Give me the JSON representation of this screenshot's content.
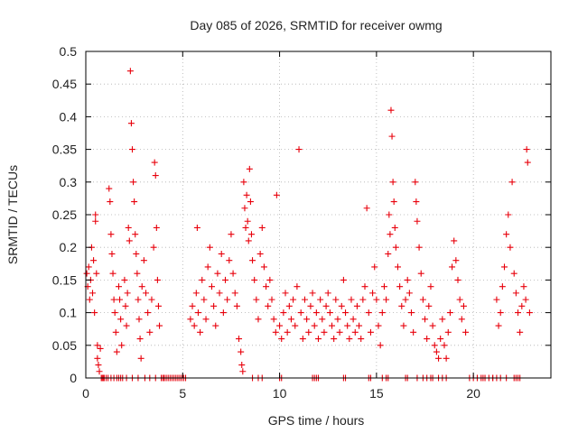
{
  "chart_data": {
    "type": "scatter",
    "title": "Day 085 of 2026, SRMTID for receiver owmg",
    "xlabel": "GPS time / hours",
    "ylabel": "SRMTID / TECUs",
    "xlim": [
      0,
      24
    ],
    "ylim": [
      0,
      0.5
    ],
    "xticks": [
      0,
      5,
      10,
      15,
      20
    ],
    "xtick_labels": [
      "0",
      "5",
      "10",
      "15",
      "20"
    ],
    "yticks": [
      0,
      0.05,
      0.1,
      0.15,
      0.2,
      0.25,
      0.3,
      0.35,
      0.4,
      0.45,
      0.5
    ],
    "ytick_labels": [
      "0",
      "0.05",
      "0.1",
      "0.15",
      "0.2",
      "0.25",
      "0.3",
      "0.35",
      "0.4",
      "0.45",
      "0.5"
    ],
    "grid": true,
    "marker": "+",
    "marker_color": "#e8000b",
    "series": [
      {
        "name": "SRMTID",
        "points": [
          [
            0.05,
            0.16
          ],
          [
            0.1,
            0.14
          ],
          [
            0.15,
            0.17
          ],
          [
            0.2,
            0.12
          ],
          [
            0.25,
            0.15
          ],
          [
            0.3,
            0.2
          ],
          [
            0.35,
            0.13
          ],
          [
            0.4,
            0.18
          ],
          [
            0.45,
            0.1
          ],
          [
            0.5,
            0.25
          ],
          [
            0.5,
            0.24
          ],
          [
            0.55,
            0.16
          ],
          [
            0.6,
            0.05
          ],
          [
            0.6,
            0.03
          ],
          [
            0.65,
            0.02
          ],
          [
            0.7,
            0.01
          ],
          [
            0.75,
            0.045
          ],
          [
            0.8,
            0.0
          ],
          [
            0.9,
            0.0
          ],
          [
            1.2,
            0.29
          ],
          [
            1.25,
            0.27
          ],
          [
            1.3,
            0.22
          ],
          [
            1.35,
            0.19
          ],
          [
            1.4,
            0.16
          ],
          [
            1.45,
            0.12
          ],
          [
            1.5,
            0.1
          ],
          [
            1.55,
            0.07
          ],
          [
            1.6,
            0.04
          ],
          [
            1.7,
            0.14
          ],
          [
            1.75,
            0.12
          ],
          [
            1.8,
            0.09
          ],
          [
            1.85,
            0.05
          ],
          [
            1.9,
            0.0
          ],
          [
            2.0,
            0.15
          ],
          [
            2.05,
            0.11
          ],
          [
            2.1,
            0.08
          ],
          [
            2.15,
            0.13
          ],
          [
            2.2,
            0.23
          ],
          [
            2.25,
            0.21
          ],
          [
            2.3,
            0.47
          ],
          [
            2.35,
            0.39
          ],
          [
            2.4,
            0.35
          ],
          [
            2.45,
            0.3
          ],
          [
            2.5,
            0.27
          ],
          [
            2.55,
            0.22
          ],
          [
            2.6,
            0.19
          ],
          [
            2.65,
            0.16
          ],
          [
            2.7,
            0.12
          ],
          [
            2.75,
            0.09
          ],
          [
            2.8,
            0.06
          ],
          [
            2.85,
            0.03
          ],
          [
            2.9,
            0.14
          ],
          [
            3.0,
            0.18
          ],
          [
            3.1,
            0.13
          ],
          [
            3.2,
            0.1
          ],
          [
            3.3,
            0.07
          ],
          [
            3.4,
            0.12
          ],
          [
            3.5,
            0.2
          ],
          [
            3.55,
            0.33
          ],
          [
            3.6,
            0.31
          ],
          [
            3.65,
            0.23
          ],
          [
            3.7,
            0.15
          ],
          [
            3.75,
            0.11
          ],
          [
            3.8,
            0.08
          ],
          [
            3.9,
            0.0
          ],
          [
            4.0,
            0.0
          ],
          [
            5.4,
            0.09
          ],
          [
            5.5,
            0.11
          ],
          [
            5.6,
            0.08
          ],
          [
            5.7,
            0.13
          ],
          [
            5.75,
            0.23
          ],
          [
            5.8,
            0.1
          ],
          [
            5.9,
            0.07
          ],
          [
            6.0,
            0.15
          ],
          [
            6.1,
            0.12
          ],
          [
            6.2,
            0.09
          ],
          [
            6.3,
            0.17
          ],
          [
            6.4,
            0.2
          ],
          [
            6.5,
            0.14
          ],
          [
            6.6,
            0.11
          ],
          [
            6.7,
            0.08
          ],
          [
            6.8,
            0.16
          ],
          [
            6.9,
            0.13
          ],
          [
            7.0,
            0.19
          ],
          [
            7.1,
            0.1
          ],
          [
            7.2,
            0.15
          ],
          [
            7.3,
            0.12
          ],
          [
            7.4,
            0.18
          ],
          [
            7.5,
            0.22
          ],
          [
            7.6,
            0.16
          ],
          [
            7.7,
            0.13
          ],
          [
            7.8,
            0.11
          ],
          [
            7.9,
            0.06
          ],
          [
            8.0,
            0.04
          ],
          [
            8.05,
            0.02
          ],
          [
            8.1,
            0.01
          ],
          [
            8.15,
            0.3
          ],
          [
            8.2,
            0.26
          ],
          [
            8.25,
            0.23
          ],
          [
            8.3,
            0.28
          ],
          [
            8.35,
            0.24
          ],
          [
            8.4,
            0.21
          ],
          [
            8.45,
            0.32
          ],
          [
            8.5,
            0.27
          ],
          [
            8.55,
            0.22
          ],
          [
            8.6,
            0.18
          ],
          [
            8.7,
            0.15
          ],
          [
            8.8,
            0.12
          ],
          [
            8.9,
            0.09
          ],
          [
            9.0,
            0.19
          ],
          [
            9.1,
            0.23
          ],
          [
            9.2,
            0.17
          ],
          [
            9.3,
            0.14
          ],
          [
            9.4,
            0.11
          ],
          [
            9.5,
            0.15
          ],
          [
            9.6,
            0.12
          ],
          [
            9.7,
            0.09
          ],
          [
            9.8,
            0.07
          ],
          [
            9.85,
            0.28
          ],
          [
            10.0,
            0.08
          ],
          [
            10.1,
            0.06
          ],
          [
            10.2,
            0.1
          ],
          [
            10.3,
            0.13
          ],
          [
            10.4,
            0.07
          ],
          [
            10.5,
            0.11
          ],
          [
            10.6,
            0.09
          ],
          [
            10.7,
            0.12
          ],
          [
            10.8,
            0.08
          ],
          [
            10.9,
            0.14
          ],
          [
            11.0,
            0.35
          ],
          [
            11.1,
            0.1
          ],
          [
            11.2,
            0.06
          ],
          [
            11.3,
            0.12
          ],
          [
            11.4,
            0.09
          ],
          [
            11.5,
            0.07
          ],
          [
            11.6,
            0.11
          ],
          [
            11.7,
            0.13
          ],
          [
            11.8,
            0.08
          ],
          [
            11.9,
            0.1
          ],
          [
            12.0,
            0.06
          ],
          [
            12.1,
            0.12
          ],
          [
            12.2,
            0.09
          ],
          [
            12.3,
            0.07
          ],
          [
            12.4,
            0.11
          ],
          [
            12.5,
            0.13
          ],
          [
            12.6,
            0.1
          ],
          [
            12.7,
            0.08
          ],
          [
            12.8,
            0.06
          ],
          [
            12.9,
            0.12
          ],
          [
            13.0,
            0.09
          ],
          [
            13.1,
            0.07
          ],
          [
            13.2,
            0.11
          ],
          [
            13.3,
            0.15
          ],
          [
            13.4,
            0.1
          ],
          [
            13.5,
            0.08
          ],
          [
            13.6,
            0.06
          ],
          [
            13.7,
            0.12
          ],
          [
            13.8,
            0.09
          ],
          [
            13.9,
            0.07
          ],
          [
            14.0,
            0.11
          ],
          [
            14.1,
            0.08
          ],
          [
            14.2,
            0.06
          ],
          [
            14.3,
            0.12
          ],
          [
            14.4,
            0.14
          ],
          [
            14.5,
            0.26
          ],
          [
            14.6,
            0.1
          ],
          [
            14.7,
            0.07
          ],
          [
            14.8,
            0.13
          ],
          [
            14.9,
            0.17
          ],
          [
            15.0,
            0.12
          ],
          [
            15.1,
            0.08
          ],
          [
            15.2,
            0.05
          ],
          [
            15.3,
            0.1
          ],
          [
            15.4,
            0.14
          ],
          [
            15.5,
            0.12
          ],
          [
            15.6,
            0.19
          ],
          [
            15.65,
            0.25
          ],
          [
            15.7,
            0.22
          ],
          [
            15.75,
            0.41
          ],
          [
            15.8,
            0.37
          ],
          [
            15.85,
            0.3
          ],
          [
            15.9,
            0.27
          ],
          [
            15.95,
            0.23
          ],
          [
            16.0,
            0.2
          ],
          [
            16.1,
            0.17
          ],
          [
            16.2,
            0.14
          ],
          [
            16.3,
            0.11
          ],
          [
            16.4,
            0.08
          ],
          [
            16.5,
            0.12
          ],
          [
            16.6,
            0.15
          ],
          [
            16.7,
            0.13
          ],
          [
            16.8,
            0.1
          ],
          [
            16.9,
            0.07
          ],
          [
            17.0,
            0.3
          ],
          [
            17.05,
            0.27
          ],
          [
            17.1,
            0.24
          ],
          [
            17.2,
            0.2
          ],
          [
            17.3,
            0.16
          ],
          [
            17.4,
            0.12
          ],
          [
            17.5,
            0.09
          ],
          [
            17.6,
            0.06
          ],
          [
            17.7,
            0.11
          ],
          [
            17.8,
            0.14
          ],
          [
            17.9,
            0.08
          ],
          [
            18.0,
            0.05
          ],
          [
            18.1,
            0.04
          ],
          [
            18.2,
            0.03
          ],
          [
            18.3,
            0.06
          ],
          [
            18.4,
            0.09
          ],
          [
            18.5,
            0.05
          ],
          [
            18.6,
            0.03
          ],
          [
            18.7,
            0.07
          ],
          [
            18.8,
            0.1
          ],
          [
            18.9,
            0.17
          ],
          [
            19.0,
            0.21
          ],
          [
            19.1,
            0.18
          ],
          [
            19.2,
            0.15
          ],
          [
            19.3,
            0.12
          ],
          [
            19.4,
            0.09
          ],
          [
            19.5,
            0.11
          ],
          [
            19.6,
            0.07
          ],
          [
            20.0,
            0.0
          ],
          [
            20.5,
            0.0
          ],
          [
            21.0,
            0.0
          ],
          [
            21.2,
            0.12
          ],
          [
            21.3,
            0.08
          ],
          [
            21.4,
            0.1
          ],
          [
            21.5,
            0.14
          ],
          [
            21.6,
            0.17
          ],
          [
            21.7,
            0.22
          ],
          [
            21.8,
            0.25
          ],
          [
            21.9,
            0.2
          ],
          [
            22.0,
            0.3
          ],
          [
            22.1,
            0.16
          ],
          [
            22.2,
            0.13
          ],
          [
            22.3,
            0.1
          ],
          [
            22.4,
            0.07
          ],
          [
            22.5,
            0.11
          ],
          [
            22.6,
            0.14
          ],
          [
            22.7,
            0.12
          ],
          [
            22.75,
            0.35
          ],
          [
            22.8,
            0.33
          ],
          [
            22.9,
            0.1
          ]
        ]
      }
    ],
    "zero_points_x": [
      0.85,
      0.95,
      1.05,
      1.15,
      1.3,
      1.45,
      1.6,
      1.7,
      1.8,
      2.1,
      2.4,
      2.7,
      3.05,
      3.3,
      3.6,
      3.9,
      4.05,
      4.15,
      4.25,
      4.35,
      4.45,
      4.55,
      4.65,
      4.75,
      4.85,
      4.95,
      5.05,
      5.15,
      8.6,
      8.9,
      9.1,
      10.0,
      10.1,
      11.7,
      11.8,
      11.9,
      12.0,
      13.3,
      13.4,
      14.6,
      14.7,
      15.3,
      15.5,
      15.6,
      16.5,
      16.6,
      17.1,
      17.4,
      17.6,
      17.8,
      17.9,
      18.2,
      18.4,
      18.6,
      19.8,
      20.2,
      20.4,
      20.6,
      20.8,
      21.0,
      21.2,
      21.4,
      21.7,
      22.1,
      22.2,
      22.3,
      22.4
    ]
  }
}
